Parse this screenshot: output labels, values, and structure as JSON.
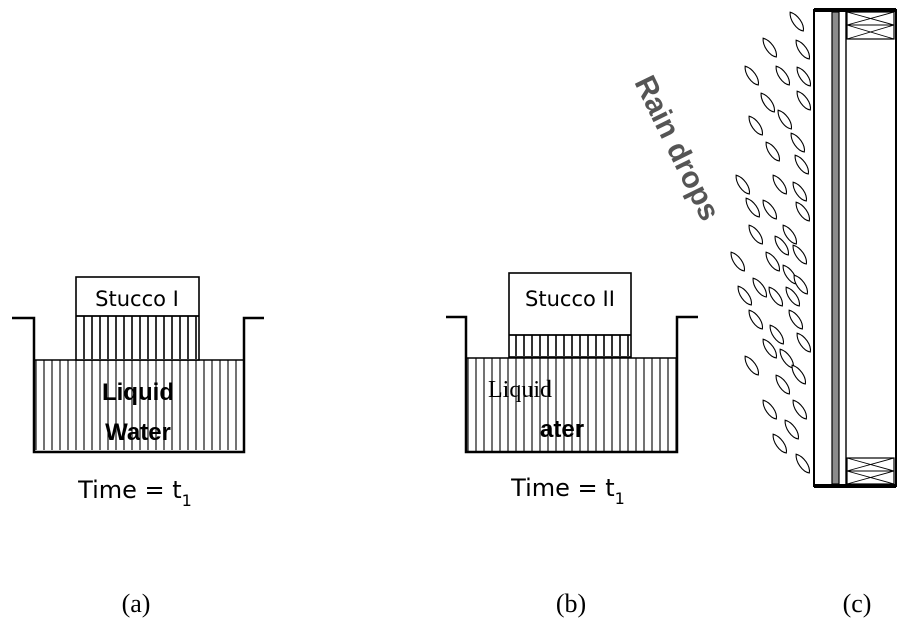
{
  "panel_a": {
    "sample_label": "Stucco I",
    "liquid_line1": "Liquid",
    "liquid_line2": "Water",
    "time_label": "Time = t",
    "time_subscript": "1",
    "caption": "(a)"
  },
  "panel_b": {
    "sample_label": "Stucco II",
    "liquid_line1": "Liquid",
    "liquid_line2": "ater",
    "time_label": "Time = t",
    "time_subscript": "1",
    "caption": "(b)"
  },
  "panel_c": {
    "rain_label": "Rain drops",
    "caption": "(c)"
  },
  "colors": {
    "stroke": "#000000",
    "drop_fill": "#ffffff",
    "wall_core": "#8c8c8c"
  }
}
